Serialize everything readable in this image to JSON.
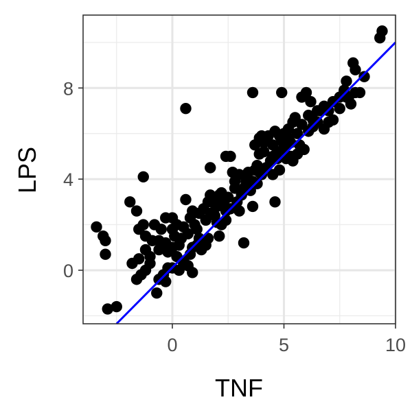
{
  "chart_data": {
    "type": "scatter",
    "title": "",
    "xlabel": "TNF",
    "ylabel": "LPS",
    "xlim": [
      -4.0,
      10.0
    ],
    "ylim": [
      -2.35,
      11.2
    ],
    "x_ticks": [
      0,
      5,
      10
    ],
    "y_ticks": [
      0,
      4,
      8
    ],
    "x_minor_ticks": [
      -2.5,
      2.5,
      7.5
    ],
    "y_minor_ticks": [
      -2,
      2,
      6,
      10
    ],
    "grid": true,
    "legend": "none",
    "point_color": "#000000",
    "fit_line": {
      "color": "#0000ff",
      "points": [
        [
          -2.5,
          -2.35
        ],
        [
          10.0,
          10.0
        ]
      ]
    },
    "points": [
      [
        9.4,
        10.5
      ],
      [
        9.3,
        10.2
      ],
      [
        8.6,
        8.5
      ],
      [
        8.1,
        9.1
      ],
      [
        8.2,
        8.8
      ],
      [
        8.4,
        7.8
      ],
      [
        7.8,
        8.3
      ],
      [
        7.7,
        7.9
      ],
      [
        7.9,
        7.6
      ],
      [
        8.0,
        7.3
      ],
      [
        7.5,
        7.6
      ],
      [
        7.2,
        7.4
      ],
      [
        7.0,
        7.0
      ],
      [
        6.8,
        7.2
      ],
      [
        7.2,
        6.6
      ],
      [
        6.6,
        7.0
      ],
      [
        6.5,
        6.5
      ],
      [
        6.2,
        7.4
      ],
      [
        6.0,
        7.8
      ],
      [
        5.8,
        7.6
      ],
      [
        6.1,
        6.8
      ],
      [
        5.5,
        6.7
      ],
      [
        5.4,
        6.5
      ],
      [
        5.6,
        6.0
      ],
      [
        6.1,
        6.1
      ],
      [
        6.3,
        6.6
      ],
      [
        6.5,
        7.0
      ],
      [
        4.9,
        7.8
      ],
      [
        5.2,
        6.2
      ],
      [
        5.0,
        6.0
      ],
      [
        4.8,
        5.9
      ],
      [
        4.6,
        6.1
      ],
      [
        4.3,
        5.9
      ],
      [
        4.1,
        5.6
      ],
      [
        4.0,
        5.9
      ],
      [
        4.5,
        5.5
      ],
      [
        5.0,
        5.3
      ],
      [
        5.3,
        5.6
      ],
      [
        5.6,
        5.1
      ],
      [
        5.4,
        4.8
      ],
      [
        5.9,
        5.3
      ],
      [
        4.7,
        4.9
      ],
      [
        4.4,
        4.8
      ],
      [
        4.1,
        5.2
      ],
      [
        3.9,
        5.1
      ],
      [
        3.7,
        5.5
      ],
      [
        3.6,
        7.8
      ],
      [
        4.2,
        4.5
      ],
      [
        4.5,
        4.2
      ],
      [
        4.8,
        4.4
      ],
      [
        5.0,
        5.5
      ],
      [
        5.3,
        5.0
      ],
      [
        3.8,
        4.6
      ],
      [
        4.0,
        4.2
      ],
      [
        3.6,
        3.9
      ],
      [
        3.3,
        3.9
      ],
      [
        3.0,
        4.2
      ],
      [
        3.4,
        4.3
      ],
      [
        2.7,
        4.3
      ],
      [
        2.8,
        3.9
      ],
      [
        2.4,
        5.0
      ],
      [
        2.6,
        5.0
      ],
      [
        1.7,
        4.5
      ],
      [
        3.2,
        3.6
      ],
      [
        3.1,
        3.3
      ],
      [
        3.5,
        3.5
      ],
      [
        3.8,
        3.8
      ],
      [
        2.9,
        3.0
      ],
      [
        2.5,
        3.2
      ],
      [
        2.3,
        2.9
      ],
      [
        2.1,
        3.3
      ],
      [
        1.9,
        3.1
      ],
      [
        1.7,
        3.3
      ],
      [
        1.6,
        3.0
      ],
      [
        2.0,
        2.8
      ],
      [
        2.6,
        2.7
      ],
      [
        3.0,
        2.6
      ],
      [
        3.6,
        2.8
      ],
      [
        4.6,
        3.0
      ],
      [
        3.2,
        1.2
      ],
      [
        1.7,
        2.5
      ],
      [
        1.4,
        2.7
      ],
      [
        1.2,
        2.5
      ],
      [
        0.8,
        2.3
      ],
      [
        1.0,
        2.0
      ],
      [
        1.1,
        1.8
      ],
      [
        1.5,
        2.2
      ],
      [
        1.9,
        2.4
      ],
      [
        2.2,
        2.0
      ],
      [
        2.4,
        2.2
      ],
      [
        0.6,
        3.1
      ],
      [
        0.9,
        2.6
      ],
      [
        0.5,
        1.9
      ],
      [
        0.2,
        2.0
      ],
      [
        0.7,
        1.6
      ],
      [
        0.4,
        1.4
      ],
      [
        0.1,
        1.5
      ],
      [
        0.0,
        1.8
      ],
      [
        -0.3,
        2.3
      ],
      [
        0.0,
        2.3
      ],
      [
        -0.5,
        1.8
      ],
      [
        -0.3,
        1.2
      ],
      [
        -0.6,
        0.9
      ],
      [
        -0.2,
        0.8
      ],
      [
        0.2,
        0.6
      ],
      [
        0.5,
        0.4
      ],
      [
        0.8,
        0.7
      ],
      [
        1.1,
        1.1
      ],
      [
        1.3,
        0.9
      ],
      [
        1.5,
        1.1
      ],
      [
        1.6,
        1.4
      ],
      [
        1.2,
        1.4
      ],
      [
        2.1,
        1.5
      ],
      [
        1.5,
        1.3
      ],
      [
        0.9,
        1.0
      ],
      [
        0.7,
        0.2
      ],
      [
        0.5,
        0.3
      ],
      [
        0.3,
        0.0
      ],
      [
        0.0,
        0.1
      ],
      [
        -0.2,
        0.1
      ],
      [
        -0.4,
        -0.2
      ],
      [
        -0.6,
        -0.4
      ],
      [
        -0.3,
        -0.5
      ],
      [
        -0.7,
        -1.0
      ],
      [
        -1.0,
        0.3
      ],
      [
        -1.2,
        0.0
      ],
      [
        -1.4,
        -0.2
      ],
      [
        -1.6,
        -0.4
      ],
      [
        -1.8,
        0.3
      ],
      [
        -1.5,
        0.5
      ],
      [
        -1.2,
        0.9
      ],
      [
        -1.0,
        0.6
      ],
      [
        -0.9,
        1.3
      ],
      [
        -0.6,
        1.3
      ],
      [
        -1.5,
        1.8
      ],
      [
        -1.3,
        2.0
      ],
      [
        -1.6,
        2.6
      ],
      [
        -1.9,
        3.0
      ],
      [
        -1.3,
        4.1
      ],
      [
        -0.8,
        2.0
      ],
      [
        -1.2,
        1.5
      ],
      [
        0.3,
        1.1
      ],
      [
        0.0,
        1.0
      ],
      [
        0.9,
        -0.1
      ],
      [
        0.6,
        7.1
      ],
      [
        -3.4,
        1.9
      ],
      [
        -3.1,
        1.5
      ],
      [
        -3.0,
        1.3
      ],
      [
        -3.0,
        0.7
      ],
      [
        -2.9,
        -1.7
      ],
      [
        -2.5,
        -1.6
      ],
      [
        5.1,
        4.9
      ],
      [
        4.9,
        5.7
      ],
      [
        5.2,
        5.8
      ],
      [
        5.7,
        5.5
      ],
      [
        4.2,
        5.7
      ],
      [
        3.9,
        5.8
      ],
      [
        6.8,
        6.2
      ],
      [
        7.0,
        6.5
      ],
      [
        7.5,
        7.1
      ],
      [
        8.2,
        7.8
      ],
      [
        7.8,
        7.6
      ],
      [
        6.3,
        6.3
      ],
      [
        5.8,
        6.4
      ],
      [
        4.7,
        5.2
      ],
      [
        4.5,
        5.0
      ],
      [
        3.9,
        4.3
      ],
      [
        3.7,
        4.4
      ],
      [
        3.3,
        4.1
      ],
      [
        2.8,
        3.6
      ],
      [
        2.2,
        3.4
      ],
      [
        1.9,
        2.9
      ],
      [
        2.4,
        2.6
      ],
      [
        2.0,
        2.1
      ]
    ]
  }
}
